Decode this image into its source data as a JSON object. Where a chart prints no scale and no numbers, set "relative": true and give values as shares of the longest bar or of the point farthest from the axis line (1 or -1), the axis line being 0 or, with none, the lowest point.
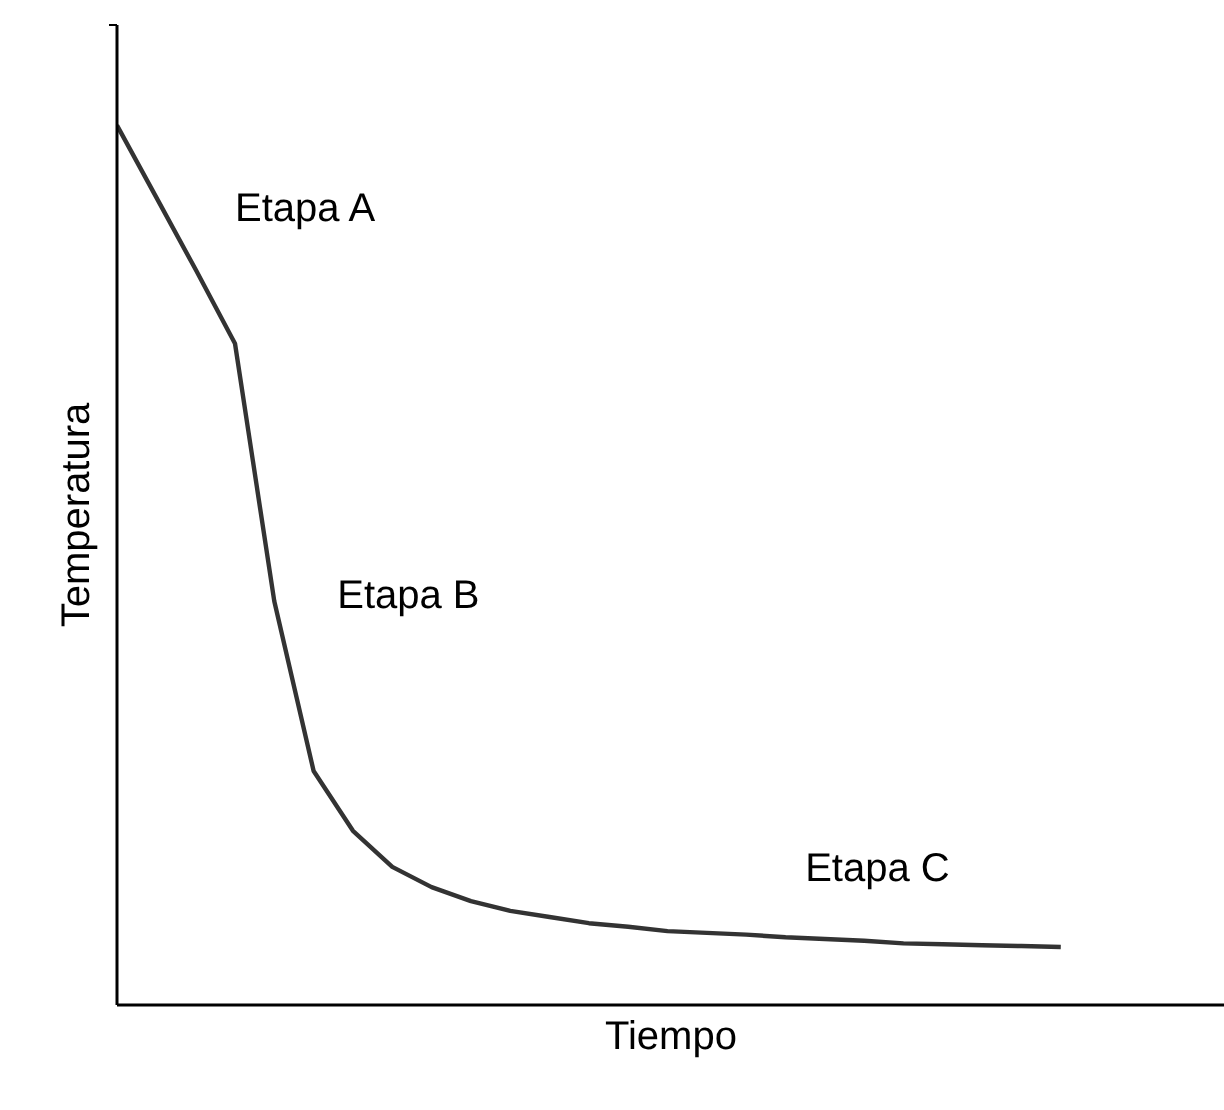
{
  "chart_data": {
    "type": "line",
    "relative": true,
    "xlabel": "Tiempo",
    "ylabel": "Temperatura",
    "categories": [
      null,
      null,
      null,
      null,
      null,
      null,
      null,
      null,
      null,
      null,
      null,
      null,
      null,
      null,
      null,
      null,
      null,
      null,
      null,
      null,
      null,
      null,
      null,
      null,
      null
    ],
    "series": [
      {
        "color": "#333333",
        "values": [
          1.0,
          0.918,
          0.836,
          0.752,
          0.459,
          0.266,
          0.198,
          0.157,
          0.134,
          0.118,
          0.107,
          0.1,
          0.093,
          0.089,
          0.084,
          0.082,
          0.08,
          0.077,
          0.075,
          0.073,
          0.07,
          0.069,
          0.068,
          0.067,
          0.066
        ]
      }
    ],
    "annotations": [
      "Etapa A",
      "Etapa B",
      "Etapa C"
    ]
  }
}
